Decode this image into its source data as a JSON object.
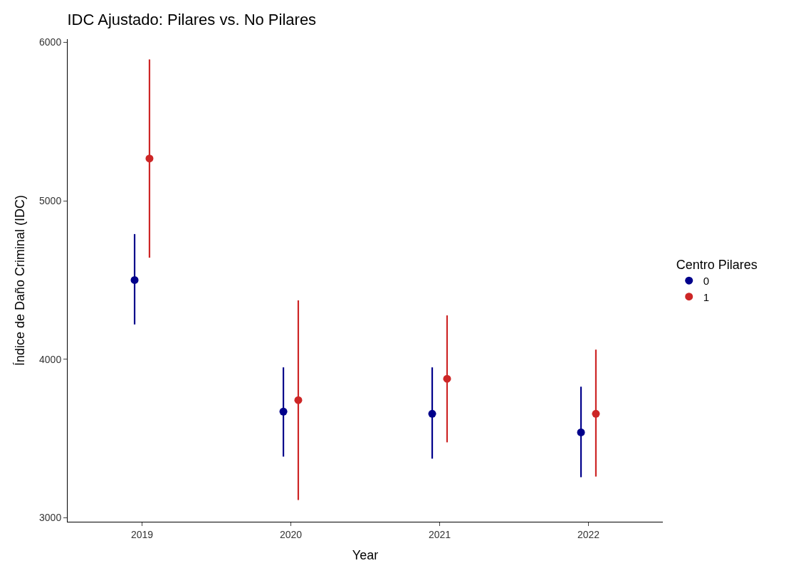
{
  "chart_data": {
    "type": "scatter",
    "title": "IDC Ajustado: Pilares vs. No Pilares",
    "xlabel": "Year",
    "ylabel": "Índice de Daño Criminal (IDC)",
    "legend_title": "Centro Pilares",
    "categories": [
      "2019",
      "2020",
      "2021",
      "2022"
    ],
    "series": [
      {
        "name": "0",
        "color": "#00008b",
        "values": [
          4500,
          3670,
          3656,
          3539
        ],
        "errors": [
          [
            4220,
            4790
          ],
          [
            3386,
            3949
          ],
          [
            3373,
            3949
          ],
          [
            3256,
            3827
          ]
        ]
      },
      {
        "name": "1",
        "color": "#cd2626",
        "values": [
          5267,
          3742,
          3877,
          3656
        ],
        "errors": [
          [
            4641,
            5892
          ],
          [
            3112,
            4372
          ],
          [
            3476,
            4277
          ],
          [
            3260,
            4061
          ]
        ]
      }
    ],
    "ylim": [
      2975,
      6020
    ],
    "yticks": [
      3000,
      4000,
      5000,
      6000
    ],
    "legend": "right",
    "marker": "circle"
  }
}
